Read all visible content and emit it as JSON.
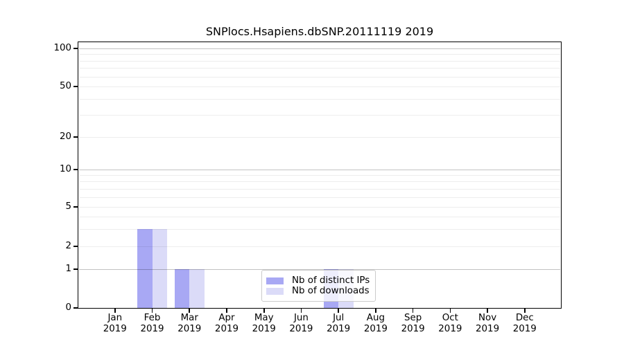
{
  "chart_data": {
    "type": "bar",
    "title": "SNPlocs.Hsapiens.dbSNP.20111119 2019",
    "year": "2019",
    "months": [
      "Jan",
      "Feb",
      "Mar",
      "Apr",
      "May",
      "Jun",
      "Jul",
      "Aug",
      "Sep",
      "Oct",
      "Nov",
      "Dec"
    ],
    "series": [
      {
        "name": "Nb of distinct IPs",
        "color": "#a8a8f4",
        "values": [
          0,
          3,
          1,
          0,
          0,
          0,
          1,
          0,
          0,
          0,
          0,
          0
        ]
      },
      {
        "name": "Nb of downloads",
        "color": "#dbdbf8",
        "values": [
          0,
          3,
          1,
          0,
          0,
          0,
          1,
          0,
          0,
          0,
          0,
          0
        ]
      }
    ],
    "y_ticks": [
      0,
      1,
      2,
      5,
      10,
      20,
      50,
      100
    ],
    "y_major_gridlines": [
      1,
      10,
      100
    ],
    "y_minor_gridlines": [
      2,
      3,
      4,
      5,
      6,
      7,
      8,
      9,
      20,
      30,
      40,
      50,
      60,
      70,
      80,
      90
    ],
    "ylim": [
      0,
      100
    ],
    "y_scale": "log with zero baseline",
    "grid": true,
    "legend_position": "inside bottom-center"
  }
}
